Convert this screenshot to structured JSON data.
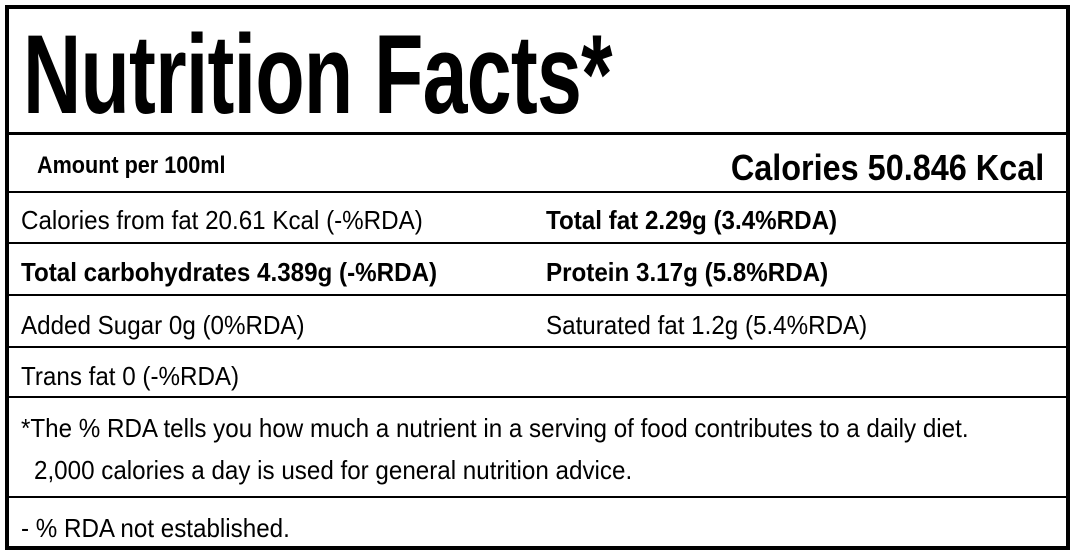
{
  "title": "Nutrition Facts*",
  "header": {
    "amount": "Amount per 100ml",
    "calories": "Calories 50.846 Kcal"
  },
  "rows": [
    [
      "Calories from fat 20.61 Kcal (-%RDA)",
      "Total fat 2.29g (3.4%RDA)"
    ],
    [
      "Total carbohydrates 4.389g (-%RDA)",
      "Protein 3.17g (5.8%RDA)"
    ],
    [
      "Added Sugar 0g (0%RDA)",
      "Saturated fat 1.2g (5.4%RDA)"
    ],
    [
      "Trans fat 0 (-%RDA)"
    ]
  ],
  "footnote": "*The % RDA tells you how much a nutrient in a serving of food contributes to a daily diet. 2,000 calories a day is used for general nutrition advice.",
  "note": "- % RDA not established."
}
